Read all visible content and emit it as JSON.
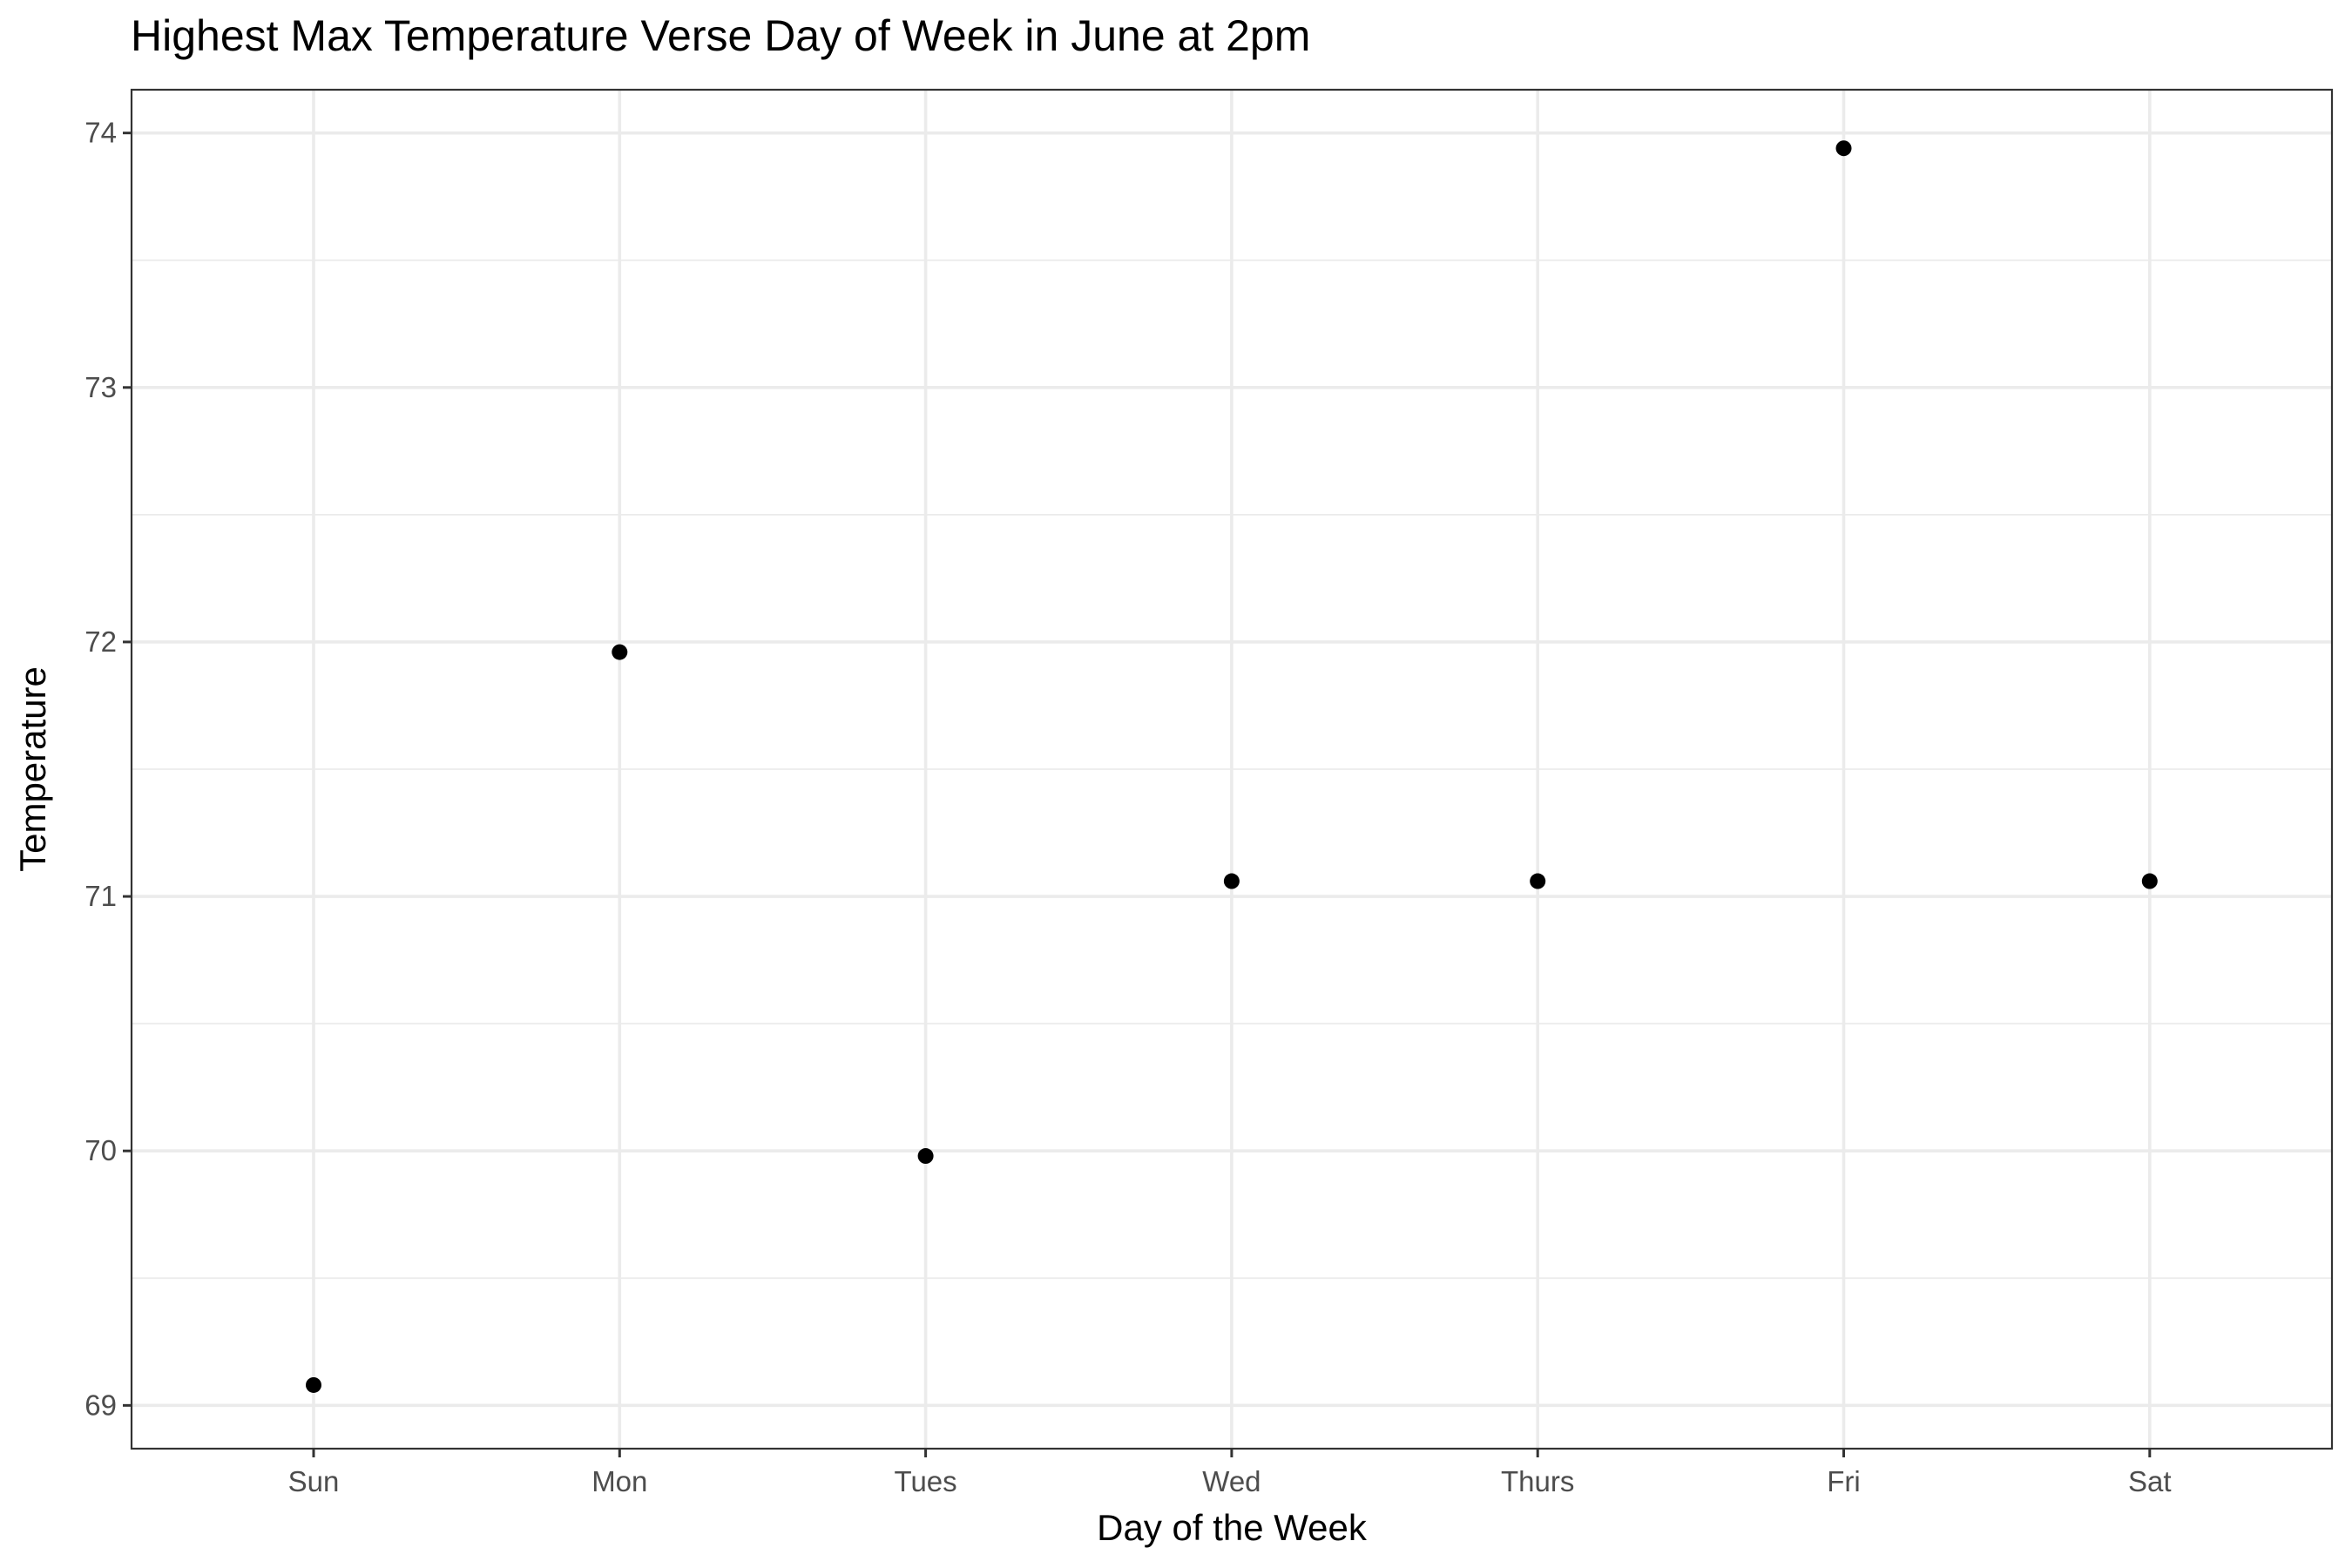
{
  "chart_data": {
    "type": "scatter",
    "title": "Highest Max Temperature Verse Day of Week in June at 2pm",
    "xlabel": "Day of the Week",
    "ylabel": "Temperature",
    "categories": [
      "Sun",
      "Mon",
      "Tues",
      "Wed",
      "Thurs",
      "Fri",
      "Sat"
    ],
    "values": [
      69.08,
      71.96,
      69.98,
      71.06,
      71.06,
      73.94,
      71.06
    ],
    "yticks": [
      69,
      70,
      71,
      72,
      73,
      74
    ],
    "ylim": [
      68.83,
      74.17
    ],
    "grid": true,
    "legend": "none",
    "colors": {
      "point": "#000000",
      "grid": "#ebebeb",
      "panel_border": "#333333",
      "tick_text": "#4d4d4d",
      "background": "#ffffff"
    }
  }
}
